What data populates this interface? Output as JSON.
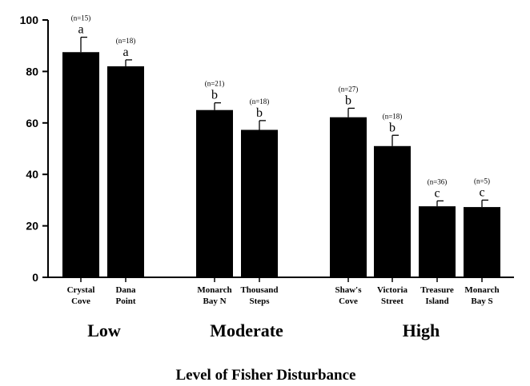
{
  "chart_data": {
    "type": "bar",
    "title": "",
    "xlabel": "Level of Fisher Disturbance",
    "ylabel": "",
    "ylim": [
      0,
      100
    ],
    "yticks": [
      "0",
      "20",
      "40",
      "60",
      "80",
      "100"
    ],
    "grid": false,
    "categories": [
      {
        "line1": "Crystal",
        "line2": "Cove",
        "value": 87.5,
        "error": 5.8,
        "n": "(n=15)",
        "letter": "a",
        "group": "Low"
      },
      {
        "line1": "Dana",
        "line2": "Point",
        "value": 82,
        "error": 2.5,
        "n": "(n=18)",
        "letter": "a",
        "group": "Low"
      },
      {
        "line1": "Monarch",
        "line2": "Bay N",
        "value": 65,
        "error": 2.8,
        "n": "(n=21)",
        "letter": "b",
        "group": "Moderate"
      },
      {
        "line1": "Thousand",
        "line2": "Steps",
        "value": 57.3,
        "error": 3.6,
        "n": "(n=18)",
        "letter": "b",
        "group": "Moderate"
      },
      {
        "line1": "Shaw's",
        "line2": "Cove",
        "value": 62.2,
        "error": 3.5,
        "n": "(n=27)",
        "letter": "b",
        "group": "High"
      },
      {
        "line1": "Victoria",
        "line2": "Street",
        "value": 51,
        "error": 4.2,
        "n": "(n=18)",
        "letter": "b",
        "group": "High"
      },
      {
        "line1": "Treasure",
        "line2": "Island",
        "value": 27.6,
        "error": 2.1,
        "n": "(n=36)",
        "letter": "c",
        "group": "High"
      },
      {
        "line1": "Monarch",
        "line2": "Bay S",
        "value": 27.3,
        "error": 2.7,
        "n": "(n=5)",
        "letter": "c",
        "group": "High"
      }
    ],
    "groups": [
      "Low",
      "Moderate",
      "High"
    ],
    "bar_color": "#000000"
  }
}
